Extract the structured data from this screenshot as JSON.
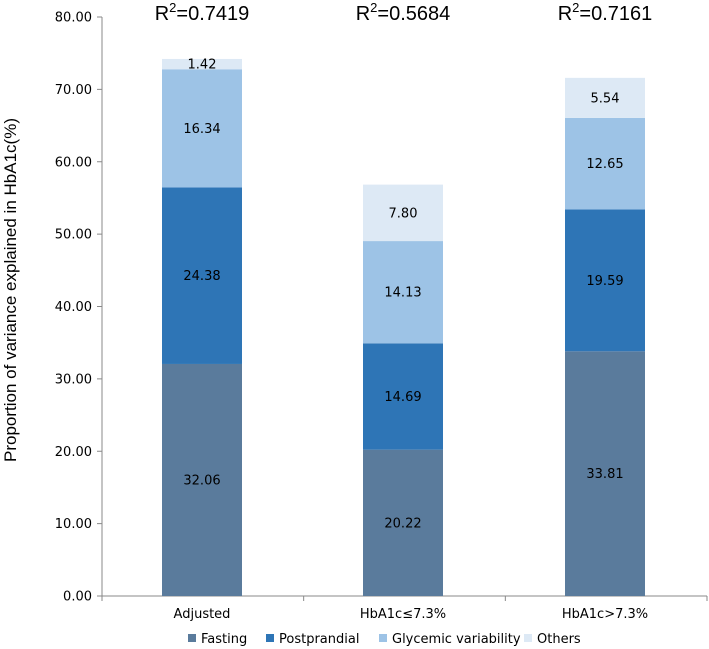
{
  "chart_data": {
    "type": "bar",
    "stacked": true,
    "title": "",
    "xlabel": "",
    "ylabel": "Proportion of variance explained in HbA1c(%)",
    "ylim": [
      0,
      80
    ],
    "ytick_step": 10,
    "ytick_labels": [
      "0.00",
      "10.00",
      "20.00",
      "30.00",
      "40.00",
      "50.00",
      "60.00",
      "70.00",
      "80.00"
    ],
    "categories": [
      "Adjusted",
      "HbA1c≤7.3%",
      "HbA1c>7.3%"
    ],
    "series": [
      {
        "name": "Fasting",
        "color": "#5a7b9c",
        "values": [
          32.06,
          20.22,
          33.81
        ],
        "labels": [
          "32.06",
          "20.22",
          "33.81"
        ]
      },
      {
        "name": "Postprandial",
        "color": "#2e75b6",
        "values": [
          24.38,
          14.69,
          19.59
        ],
        "labels": [
          "24.38",
          "14.69",
          "19.59"
        ]
      },
      {
        "name": "Glycemic variability",
        "color": "#9dc3e6",
        "values": [
          16.34,
          14.13,
          12.65
        ],
        "labels": [
          "16.34",
          "14.13",
          "12.65"
        ]
      },
      {
        "name": "Others",
        "color": "#dde9f5",
        "values": [
          1.42,
          7.8,
          5.54
        ],
        "labels": [
          "1.42",
          "7.80",
          "5.54"
        ]
      }
    ],
    "annotations": [
      {
        "category": "Adjusted",
        "prefix": "R",
        "sup": "2",
        "value": "=0.7419"
      },
      {
        "category": "HbA1c≤7.3%",
        "prefix": "R",
        "sup": "2",
        "value": "=0.5684"
      },
      {
        "category": "HbA1c>7.3%",
        "prefix": "R",
        "sup": "2",
        "value": "=0.7161"
      }
    ],
    "legend_position": "bottom",
    "grid": false
  }
}
